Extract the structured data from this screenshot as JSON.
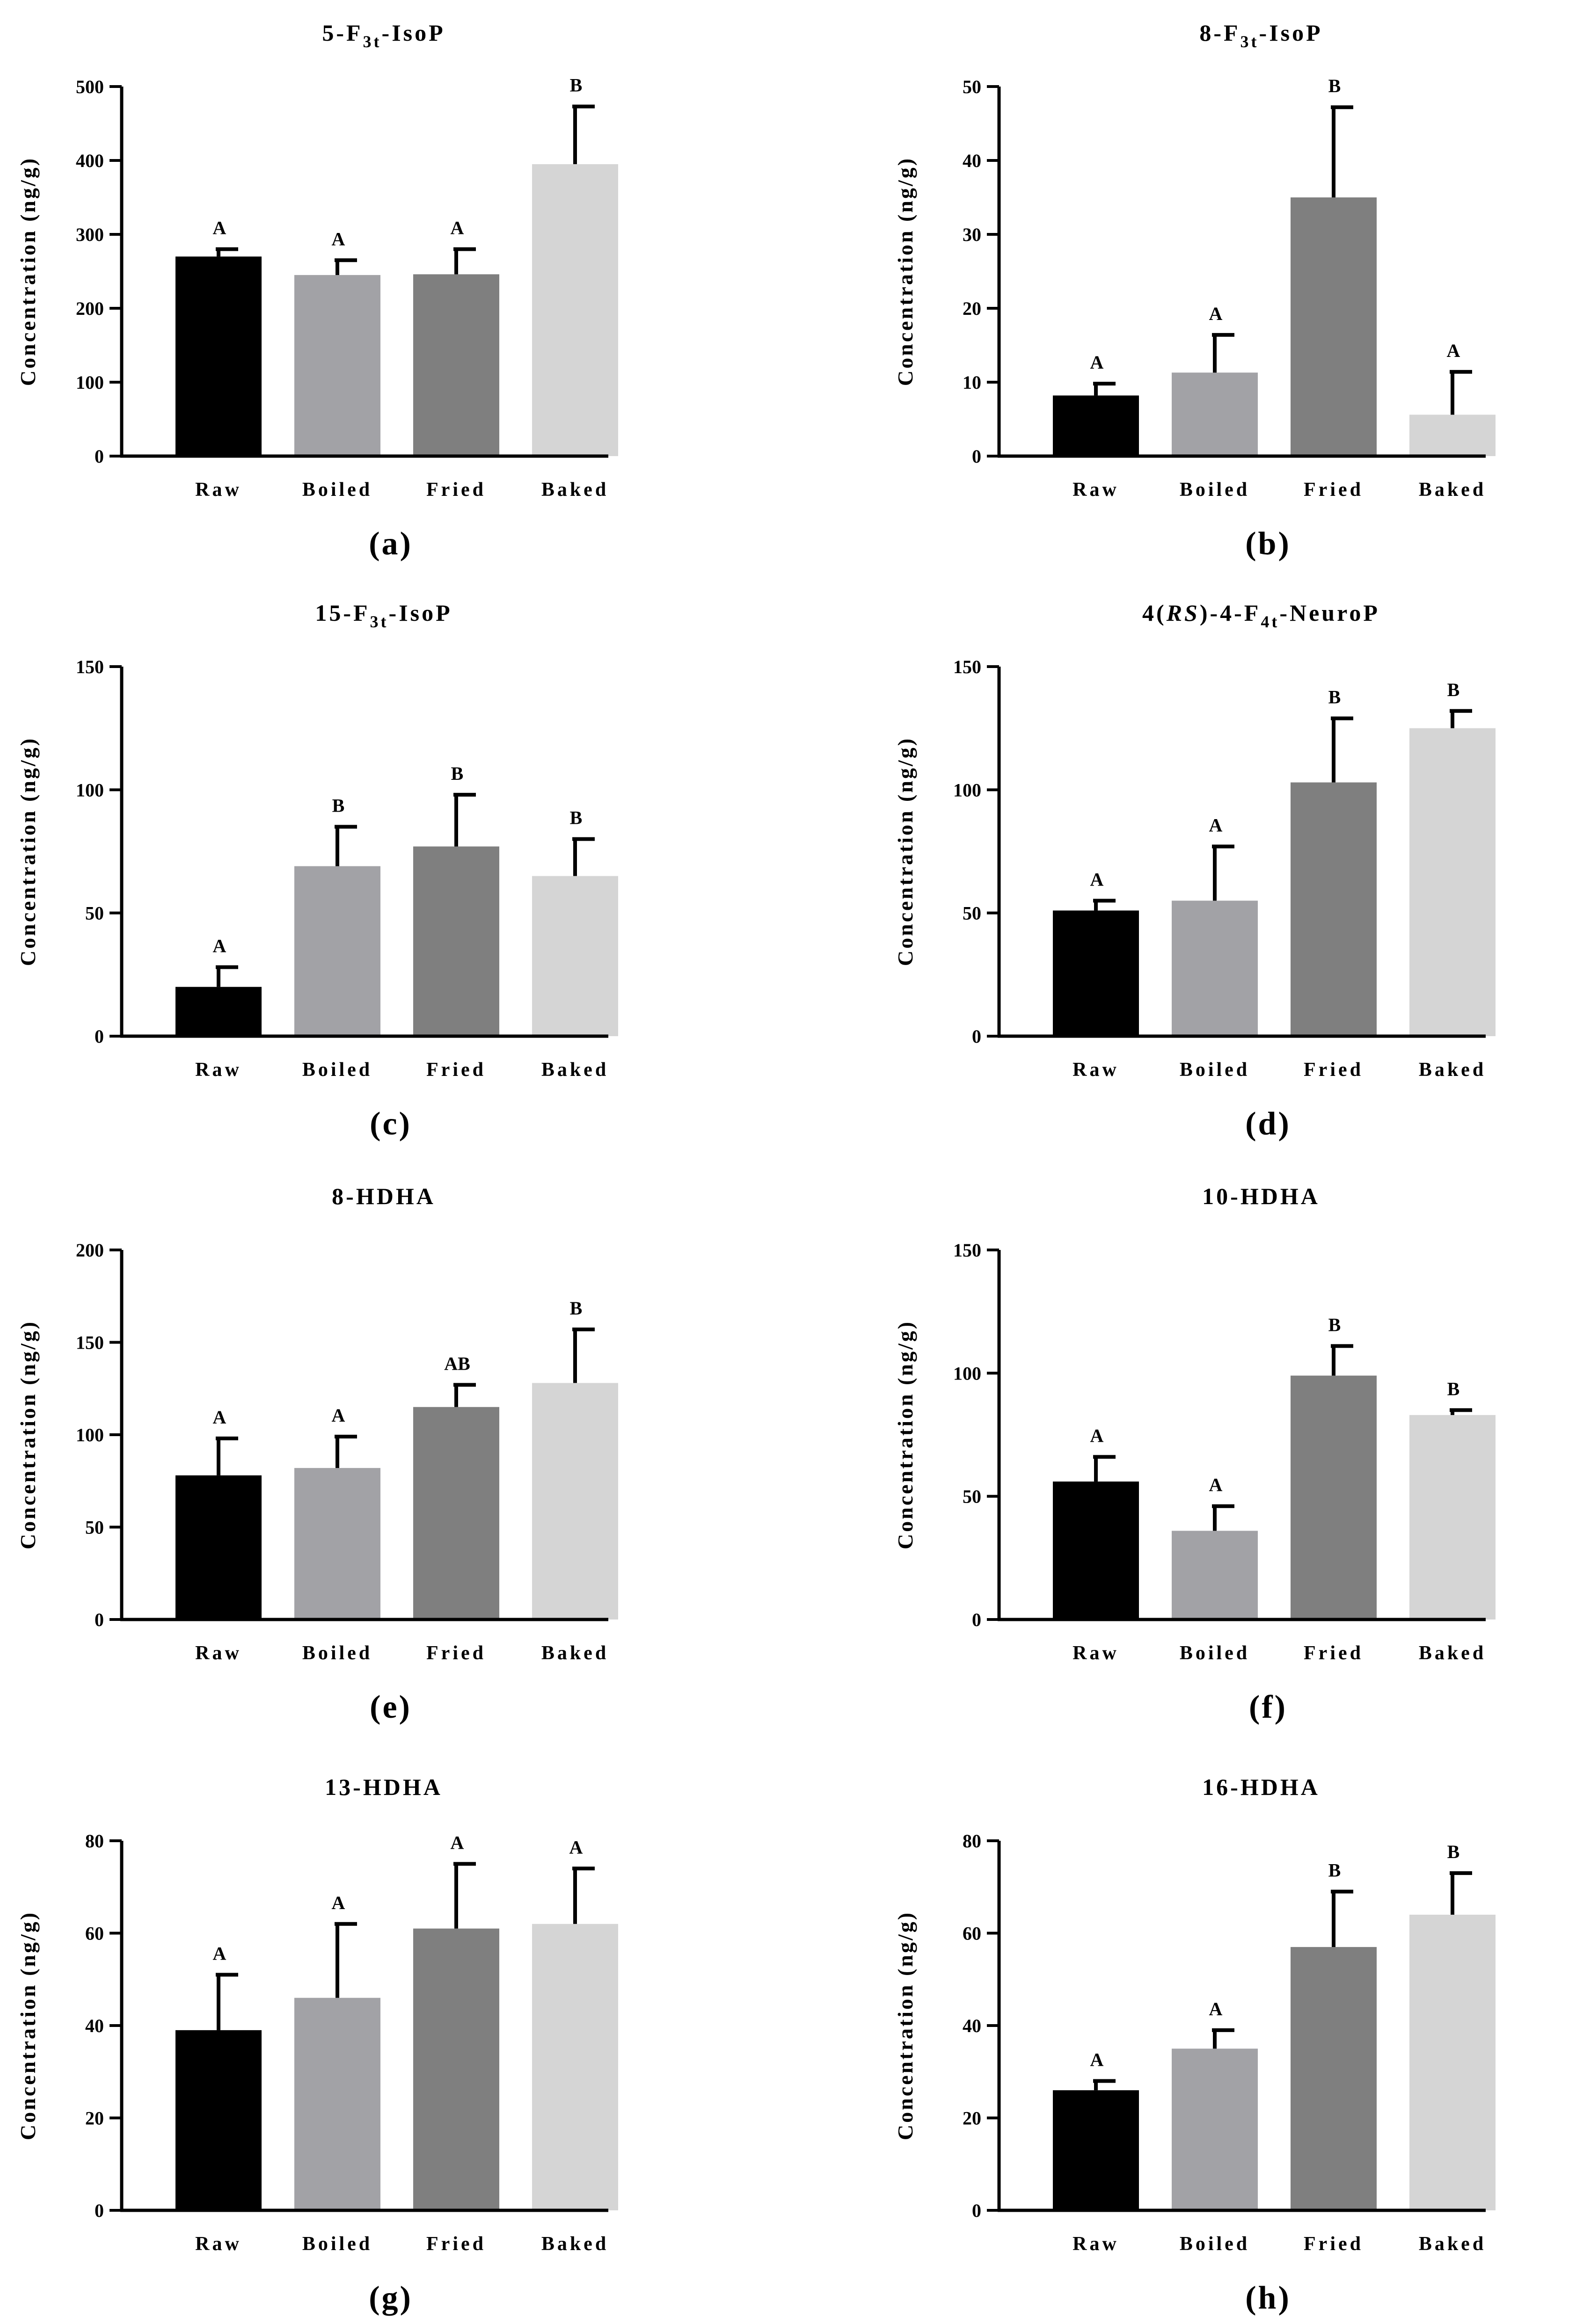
{
  "figure": {
    "categories": [
      "Raw",
      "Boiled",
      "Fried",
      "Baked"
    ],
    "ylabel": "Concentration (ng/g)",
    "colors": [
      "#000000",
      "#a2a2a6",
      "#7f7f7f",
      "#d5d5d5"
    ]
  },
  "chart_data": [
    {
      "type": "bar",
      "panel": "(a)",
      "title": "5-F3t-IsoP",
      "title_parts": [
        {
          "t": "5-F"
        },
        {
          "t": "3t",
          "sub": true
        },
        {
          "t": "-IsoP"
        }
      ],
      "categories": [
        "Raw",
        "Boiled",
        "Fried",
        "Baked"
      ],
      "values": [
        270,
        245,
        246,
        395
      ],
      "errors": [
        10,
        20,
        34,
        78
      ],
      "letters": [
        "A",
        "A",
        "A",
        "B"
      ],
      "ylabel": "Concentration (ng/g)",
      "ylim": [
        0,
        500
      ],
      "yticks": [
        0,
        100,
        200,
        300,
        400,
        500
      ],
      "ytick_labels": [
        "0",
        "100",
        "200",
        "300",
        "400",
        "500"
      ]
    },
    {
      "type": "bar",
      "panel": "(b)",
      "title": "8-F3t-IsoP",
      "title_parts": [
        {
          "t": "8-F"
        },
        {
          "t": "3t",
          "sub": true
        },
        {
          "t": "-IsoP"
        }
      ],
      "categories": [
        "Raw",
        "Boiled",
        "Fried",
        "Baked"
      ],
      "values": [
        8.2,
        11.3,
        35,
        5.6
      ],
      "errors": [
        1.6,
        5.1,
        12.2,
        5.8
      ],
      "letters": [
        "A",
        "A",
        "B",
        "A"
      ],
      "ylabel": "Concentration (ng/g)",
      "ylim": [
        0,
        50
      ],
      "yticks": [
        0,
        10,
        20,
        30,
        40,
        50
      ],
      "ytick_labels": [
        "0",
        "10",
        "20",
        "30",
        "40",
        "50"
      ]
    },
    {
      "type": "bar",
      "panel": "(c)",
      "title": "15-F3t-IsoP",
      "title_parts": [
        {
          "t": "15-F"
        },
        {
          "t": "3t",
          "sub": true
        },
        {
          "t": "-IsoP"
        }
      ],
      "categories": [
        "Raw",
        "Boiled",
        "Fried",
        "Baked"
      ],
      "values": [
        20,
        69,
        77,
        65
      ],
      "errors": [
        8,
        16,
        21,
        15
      ],
      "letters": [
        "A",
        "B",
        "B",
        "B"
      ],
      "ylabel": "Concentration (ng/g)",
      "ylim": [
        0,
        150
      ],
      "yticks": [
        0,
        50,
        100,
        150
      ],
      "ytick_labels": [
        "0",
        "50",
        "100",
        "150"
      ]
    },
    {
      "type": "bar",
      "panel": "(d)",
      "title": "4(RS)-4-F4t-NeuroP",
      "title_parts": [
        {
          "t": "4("
        },
        {
          "t": "RS",
          "ital": true
        },
        {
          "t": ")-4-F"
        },
        {
          "t": "4t",
          "sub": true
        },
        {
          "t": "-NeuroP"
        }
      ],
      "categories": [
        "Raw",
        "Boiled",
        "Fried",
        "Baked"
      ],
      "values": [
        51,
        55,
        103,
        125
      ],
      "errors": [
        4,
        22,
        26,
        7
      ],
      "letters": [
        "A",
        "A",
        "B",
        "B"
      ],
      "ylabel": "Concentration (ng/g)",
      "ylim": [
        0,
        150
      ],
      "yticks": [
        0,
        50,
        100,
        150
      ],
      "ytick_labels": [
        "0",
        "50",
        "100",
        "150"
      ]
    },
    {
      "type": "bar",
      "panel": "(e)",
      "title": "8-HDHA",
      "title_parts": [
        {
          "t": "8-HDHA"
        }
      ],
      "categories": [
        "Raw",
        "Boiled",
        "Fried",
        "Baked"
      ],
      "values": [
        78,
        82,
        115,
        128
      ],
      "errors": [
        20,
        17,
        12,
        29
      ],
      "letters": [
        "A",
        "A",
        "AB",
        "B"
      ],
      "ylabel": "Concentration (ng/g)",
      "ylim": [
        0,
        200
      ],
      "yticks": [
        0,
        50,
        100,
        150,
        200
      ],
      "ytick_labels": [
        "0",
        "50",
        "100",
        "150",
        "200"
      ]
    },
    {
      "type": "bar",
      "panel": "(f)",
      "title": "10-HDHA",
      "title_parts": [
        {
          "t": "10-HDHA"
        }
      ],
      "categories": [
        "Raw",
        "Boiled",
        "Fried",
        "Baked"
      ],
      "values": [
        56,
        36,
        99,
        83
      ],
      "errors": [
        10,
        10,
        12,
        2
      ],
      "letters": [
        "A",
        "A",
        "B",
        "B"
      ],
      "ylabel": "Concentration (ng/g)",
      "ylim": [
        0,
        150
      ],
      "yticks": [
        0,
        50,
        100,
        150
      ],
      "ytick_labels": [
        "0",
        "50",
        "100",
        "150"
      ]
    },
    {
      "type": "bar",
      "panel": "(g)",
      "title": "13-HDHA",
      "title_parts": [
        {
          "t": "13-HDHA"
        }
      ],
      "categories": [
        "Raw",
        "Boiled",
        "Fried",
        "Baked"
      ],
      "values": [
        39,
        46,
        61,
        62
      ],
      "errors": [
        12,
        16,
        14,
        12
      ],
      "letters": [
        "A",
        "A",
        "A",
        "A"
      ],
      "ylabel": "Concentration (ng/g)",
      "ylim": [
        0,
        80
      ],
      "yticks": [
        0,
        20,
        40,
        60,
        80
      ],
      "ytick_labels": [
        "0",
        "20",
        "40",
        "60",
        "80"
      ]
    },
    {
      "type": "bar",
      "panel": "(h)",
      "title": "16-HDHA",
      "title_parts": [
        {
          "t": "16-HDHA"
        }
      ],
      "categories": [
        "Raw",
        "Boiled",
        "Fried",
        "Baked"
      ],
      "values": [
        26,
        35,
        57,
        64
      ],
      "errors": [
        2,
        4,
        12,
        9
      ],
      "letters": [
        "A",
        "A",
        "B",
        "B"
      ],
      "ylabel": "Concentration (ng/g)",
      "ylim": [
        0,
        80
      ],
      "yticks": [
        0,
        20,
        40,
        60,
        80
      ],
      "ytick_labels": [
        "0",
        "20",
        "40",
        "60",
        "80"
      ]
    }
  ]
}
